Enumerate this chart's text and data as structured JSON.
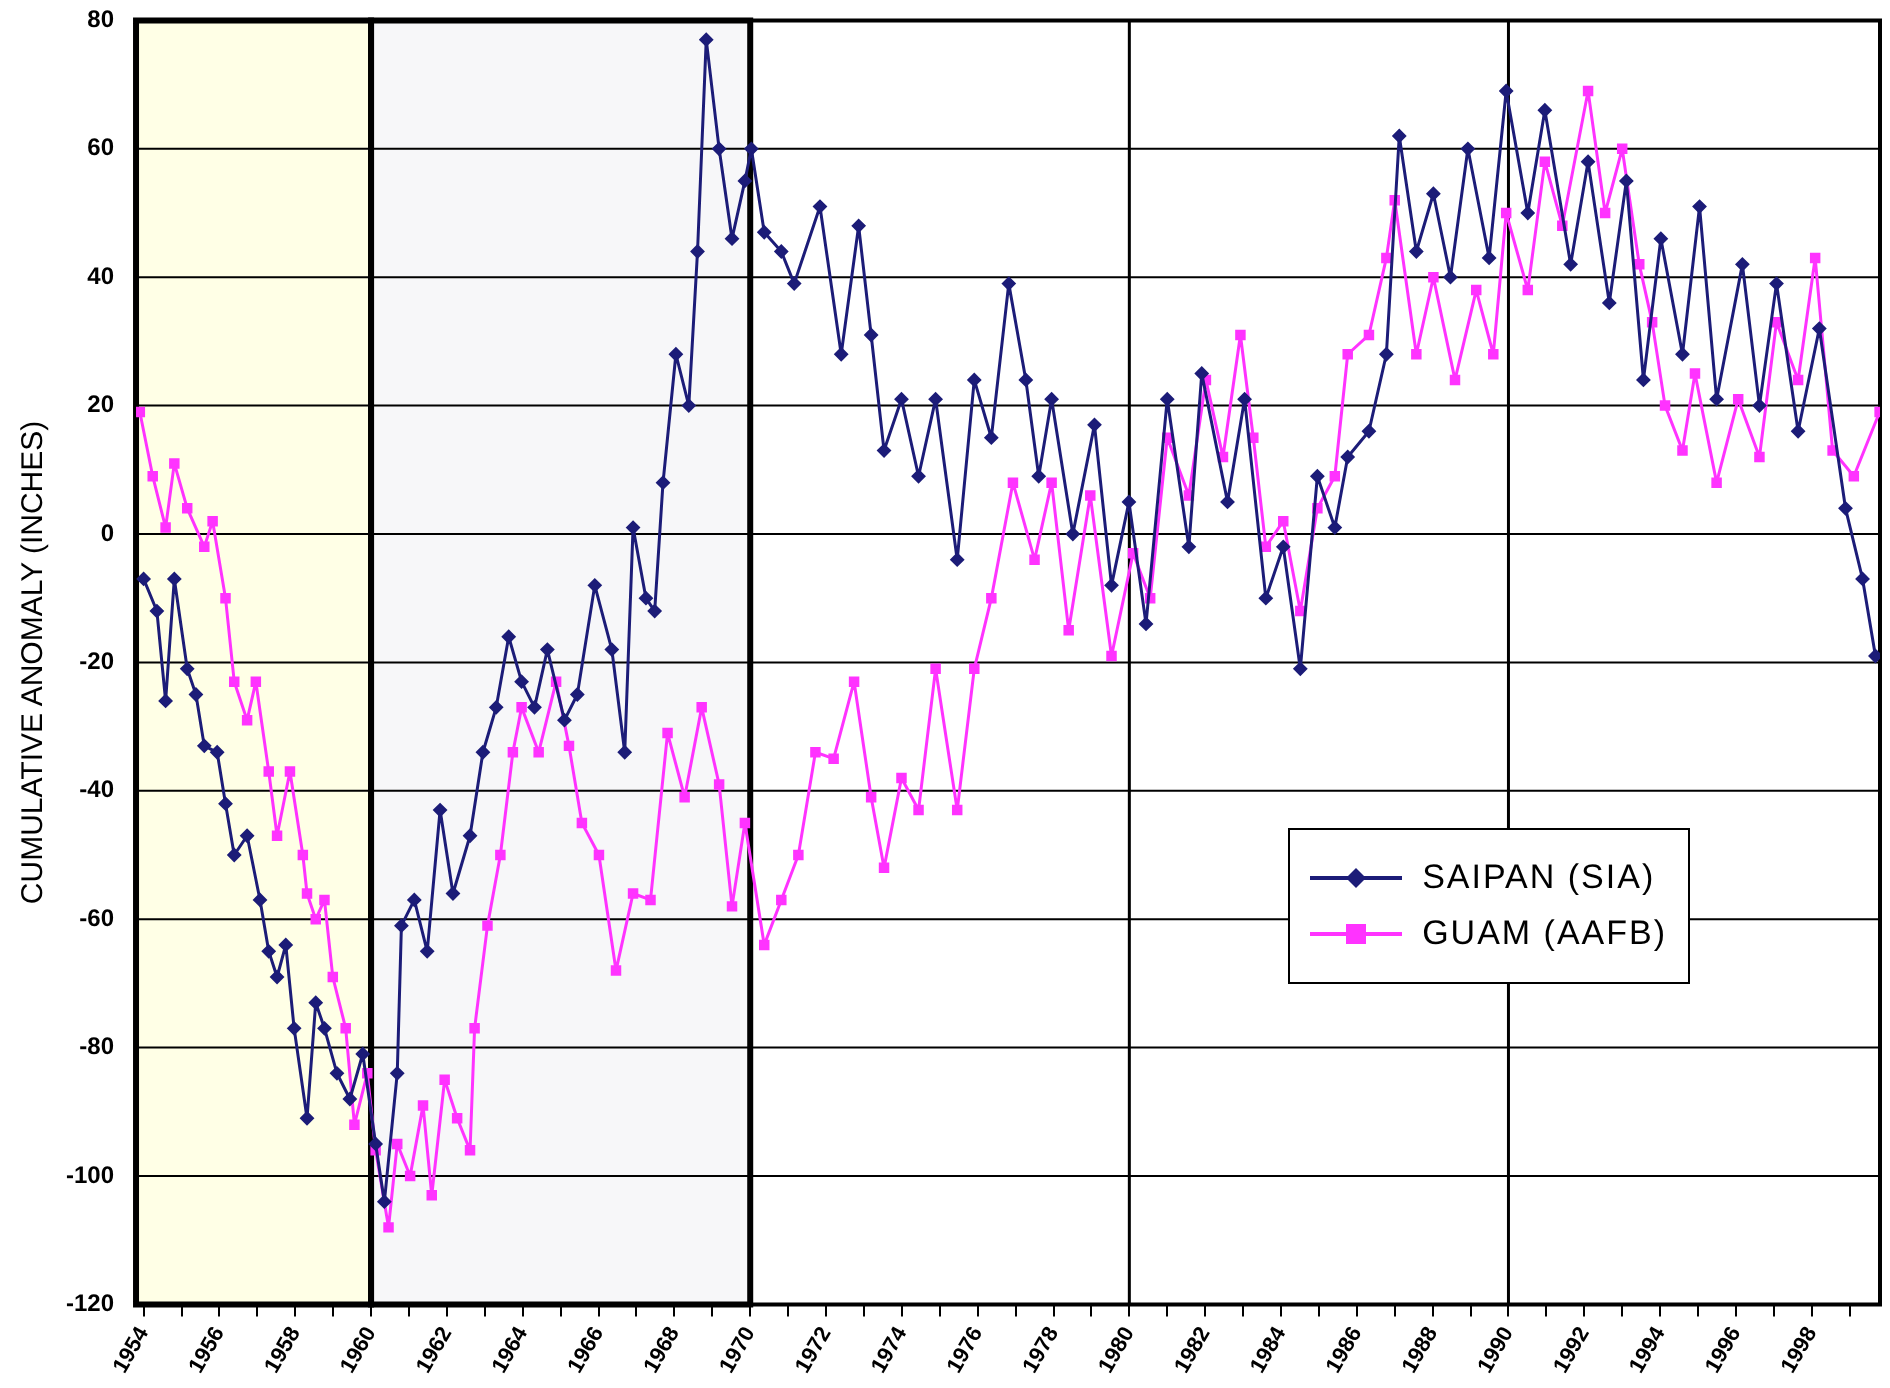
{
  "chart_data": {
    "type": "line",
    "ylabel": "CUMULATIVE ANOMALY (INCHES)",
    "xlim": [
      1953.8,
      1999.8
    ],
    "ylim": [
      -120,
      80
    ],
    "yticks": [
      -120,
      -100,
      -80,
      -60,
      -40,
      -20,
      0,
      20,
      40,
      60,
      80
    ],
    "xticks": [
      1954,
      {
        "value": 1955,
        "label": null
      },
      1956,
      {
        "value": 1957,
        "label": null
      },
      1958,
      {
        "value": 1959,
        "label": null
      },
      1960,
      {
        "value": 1961,
        "label": null
      },
      1962,
      {
        "value": 1963,
        "label": null
      },
      1964,
      {
        "value": 1965,
        "label": null
      },
      1966,
      {
        "value": 1967,
        "label": null
      },
      1968,
      {
        "value": 1969,
        "label": null
      },
      1970,
      {
        "value": 1971,
        "label": null
      },
      1972,
      {
        "value": 1973,
        "label": null
      },
      1974,
      {
        "value": 1975,
        "label": null
      },
      1976,
      {
        "value": 1977,
        "label": null
      },
      1978,
      {
        "value": 1979,
        "label": null
      },
      1980,
      {
        "value": 1981,
        "label": null
      },
      1982,
      {
        "value": 1983,
        "label": null
      },
      1984,
      {
        "value": 1985,
        "label": null
      },
      1986,
      {
        "value": 1987,
        "label": null
      },
      1988,
      {
        "value": 1989,
        "label": null
      },
      1990,
      {
        "value": 1991,
        "label": null
      },
      1992,
      {
        "value": 1993,
        "label": null
      },
      1994,
      {
        "value": 1995,
        "label": null
      },
      1996,
      {
        "value": 1997,
        "label": null
      },
      1998,
      {
        "value": 1999,
        "label": null
      }
    ],
    "grid": "y",
    "legend": "right",
    "line_style": "solid",
    "bands": [
      {
        "axis": "x",
        "from": 1953.8,
        "to": 1960,
        "color": "#ffffe6"
      },
      {
        "axis": "x",
        "from": 1960,
        "to": 1970,
        "color": "#f7f7f9"
      }
    ],
    "ref_lines": [
      {
        "axis": "x",
        "value": 1980,
        "color": "#000000"
      },
      {
        "axis": "x",
        "value": 1990,
        "color": "#000000"
      }
    ],
    "series": [
      {
        "name": "SAIPAN (SIA)",
        "color": "#1c1c78",
        "marker": "diamond",
        "x": [
          1954.0,
          1954.35,
          1954.58,
          1954.81,
          1955.15,
          1955.38,
          1955.6,
          1955.94,
          1956.16,
          1956.39,
          1956.73,
          1957.07,
          1957.3,
          1957.52,
          1957.75,
          1957.97,
          1958.31,
          1958.54,
          1958.77,
          1959.1,
          1959.44,
          1959.78,
          1960.12,
          1960.35,
          1960.69,
          1960.8,
          1961.14,
          1961.48,
          1961.82,
          1962.16,
          1962.61,
          1962.95,
          1963.3,
          1963.63,
          1963.97,
          1964.31,
          1964.65,
          1965.1,
          1965.44,
          1965.9,
          1966.35,
          1966.69,
          1966.91,
          1967.25,
          1967.48,
          1967.7,
          1968.04,
          1968.38,
          1968.61,
          1968.84,
          1969.18,
          1969.52,
          1969.86,
          1970.03,
          1970.37,
          1970.82,
          1971.16,
          1971.84,
          1972.4,
          1972.86,
          1973.19,
          1973.53,
          1973.99,
          1974.44,
          1974.89,
          1975.46,
          1975.91,
          1976.36,
          1976.82,
          1977.27,
          1977.61,
          1977.95,
          1978.51,
          1979.08,
          1979.53,
          1979.99,
          1980.44,
          1981.0,
          1981.57,
          1981.91,
          1982.59,
          1983.04,
          1983.6,
          1984.06,
          1984.51,
          1984.96,
          1985.42,
          1985.76,
          1986.32,
          1986.78,
          1987.12,
          1987.57,
          1988.02,
          1988.47,
          1988.93,
          1989.49,
          1989.94,
          1990.51,
          1990.96,
          1991.64,
          1992.1,
          1992.66,
          1993.11,
          1993.56,
          1994.02,
          1994.59,
          1995.04,
          1995.49,
          1996.17,
          1996.62,
          1997.07,
          1997.64,
          1998.2,
          1998.89,
          1999.34,
          1999.68
        ],
        "values": [
          -7,
          -12,
          -26,
          -7,
          -21,
          -25,
          -33,
          -34,
          -42,
          -50,
          -47,
          -57,
          -65,
          -69,
          -64,
          -77,
          -91,
          -73,
          -77,
          -84,
          -88,
          -81,
          -95,
          -104,
          -84,
          -61,
          -57,
          -65,
          -43,
          -56,
          -47,
          -34,
          -27,
          -16,
          -23,
          -27,
          -18,
          -29,
          -25,
          -8,
          -18,
          -34,
          1,
          -10,
          -12,
          8,
          28,
          20,
          44,
          77,
          60,
          46,
          55,
          60,
          47,
          44,
          39,
          51,
          28,
          48,
          31,
          13,
          21,
          9,
          21,
          -4,
          24,
          15,
          39,
          24,
          9,
          21,
          0,
          17,
          -8,
          5,
          -14,
          21,
          -2,
          25,
          5,
          21,
          -10,
          -2,
          -21,
          9,
          1,
          12,
          16,
          28,
          62,
          44,
          53,
          40,
          60,
          43,
          69,
          50,
          66,
          42,
          58,
          36,
          55,
          24,
          46,
          28,
          51,
          21,
          42,
          20,
          39,
          16,
          32,
          4,
          -7,
          -19
        ]
      },
      {
        "name": "GUAM (AAFB)",
        "color": "#ff33ff",
        "marker": "square",
        "x": [
          1953.9,
          1954.24,
          1954.58,
          1954.81,
          1955.15,
          1955.6,
          1955.82,
          1956.16,
          1956.39,
          1956.73,
          1956.96,
          1957.3,
          1957.52,
          1957.86,
          1958.2,
          1958.31,
          1958.54,
          1958.77,
          1958.99,
          1959.33,
          1959.56,
          1959.9,
          1960.12,
          1960.46,
          1960.69,
          1961.03,
          1961.37,
          1961.6,
          1961.94,
          1962.27,
          1962.61,
          1962.73,
          1963.07,
          1963.41,
          1963.74,
          1963.97,
          1964.42,
          1964.88,
          1965.22,
          1965.56,
          1966.01,
          1966.46,
          1966.91,
          1967.37,
          1967.82,
          1968.27,
          1968.72,
          1969.18,
          1969.52,
          1969.86,
          1970.37,
          1970.82,
          1971.27,
          1971.72,
          1972.2,
          1972.74,
          1973.19,
          1973.53,
          1973.99,
          1974.44,
          1974.89,
          1975.46,
          1975.91,
          1976.36,
          1976.93,
          1977.5,
          1977.95,
          1978.4,
          1978.97,
          1979.53,
          1980.1,
          1980.55,
          1981.0,
          1981.57,
          1982.02,
          1982.47,
          1982.93,
          1983.27,
          1983.6,
          1984.06,
          1984.51,
          1984.96,
          1985.42,
          1985.76,
          1986.32,
          1986.78,
          1987.0,
          1987.57,
          1988.02,
          1988.59,
          1989.15,
          1989.6,
          1989.94,
          1990.51,
          1990.96,
          1991.42,
          1992.1,
          1992.55,
          1993.0,
          1993.45,
          1993.79,
          1994.13,
          1994.59,
          1994.92,
          1995.49,
          1996.06,
          1996.62,
          1997.07,
          1997.64,
          1998.09,
          1998.55,
          1999.11,
          1999.79
        ],
        "values": [
          19,
          9,
          1,
          11,
          4,
          -2,
          2,
          -10,
          -23,
          -29,
          -23,
          -37,
          -47,
          -37,
          -50,
          -56,
          -60,
          -57,
          -69,
          -77,
          -92,
          -84,
          -96,
          -108,
          -95,
          -100,
          -89,
          -103,
          -85,
          -91,
          -96,
          -77,
          -61,
          -50,
          -34,
          -27,
          -34,
          -23,
          -33,
          -45,
          -50,
          -68,
          -56,
          -57,
          -31,
          -41,
          -27,
          -39,
          -58,
          -45,
          -64,
          -57,
          -50,
          -34,
          -35,
          -23,
          -41,
          -52,
          -38,
          -43,
          -21,
          -43,
          -21,
          -10,
          8,
          -4,
          8,
          -15,
          6,
          -19,
          -3,
          -10,
          15,
          6,
          24,
          12,
          31,
          15,
          -2,
          2,
          -12,
          4,
          9,
          28,
          31,
          43,
          52,
          28,
          40,
          24,
          38,
          28,
          50,
          38,
          58,
          48,
          69,
          50,
          60,
          42,
          33,
          20,
          13,
          25,
          8,
          21,
          12,
          33,
          24,
          43,
          13,
          9,
          19
        ]
      }
    ]
  }
}
